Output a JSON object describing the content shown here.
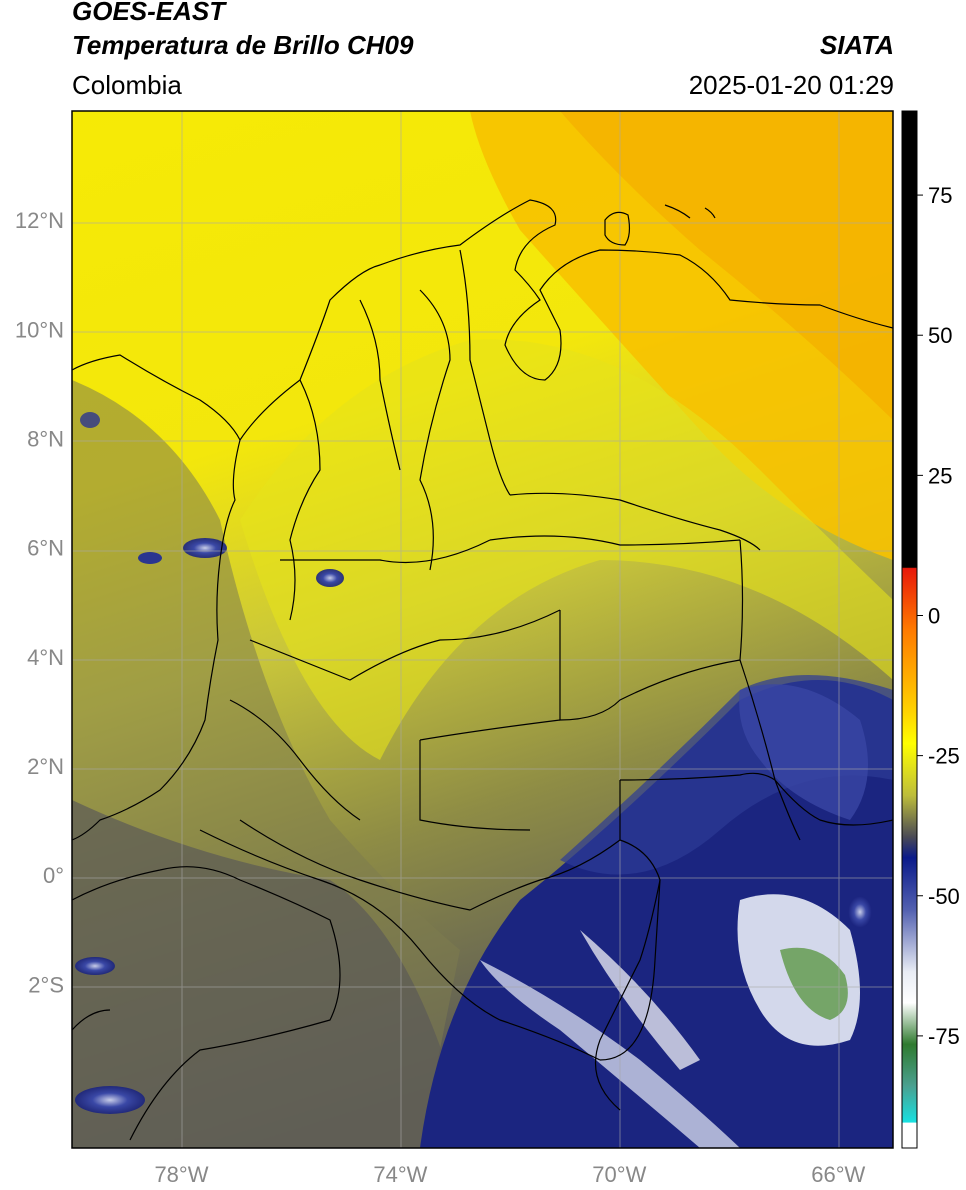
{
  "header": {
    "satellite": "GOES-EAST",
    "product": "Temperatura de Brillo CH09",
    "source": "SIATA",
    "region": "Colombia",
    "timestamp": "2025-01-20 01:29"
  },
  "map": {
    "lon_range": [
      -80.0,
      -65.0
    ],
    "lat_range": [
      -5.0,
      14.0
    ],
    "lon_ticks": [
      {
        "value": -78,
        "label": "78°W"
      },
      {
        "value": -74,
        "label": "74°W"
      },
      {
        "value": -70,
        "label": "70°W"
      },
      {
        "value": -66,
        "label": "66°W"
      }
    ],
    "lat_ticks": [
      {
        "value": 12,
        "label": "12°N"
      },
      {
        "value": 10,
        "label": "10°N"
      },
      {
        "value": 8,
        "label": "8°N"
      },
      {
        "value": 6,
        "label": "6°N"
      },
      {
        "value": 4,
        "label": "4°N"
      },
      {
        "value": 2,
        "label": "2°N"
      },
      {
        "value": 0,
        "label": "0°"
      },
      {
        "value": -2,
        "label": "2°S"
      }
    ],
    "grid": true
  },
  "colorbar": {
    "range": [
      -95,
      90
    ],
    "ticks": [
      {
        "value": 75,
        "label": "75"
      },
      {
        "value": 50,
        "label": "50"
      },
      {
        "value": 25,
        "label": "25"
      },
      {
        "value": 0,
        "label": "0"
      },
      {
        "value": -25,
        "label": "-25"
      },
      {
        "value": -50,
        "label": "-50"
      },
      {
        "value": -75,
        "label": "-75"
      }
    ]
  }
}
